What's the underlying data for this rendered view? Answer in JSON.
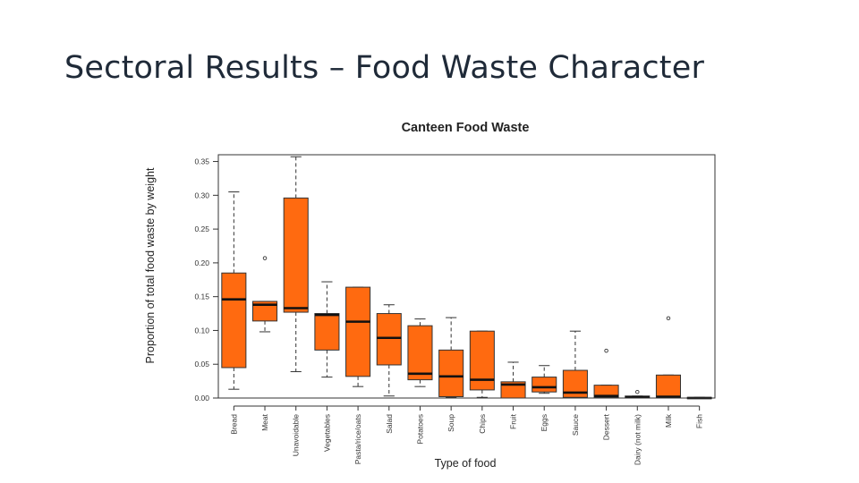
{
  "slide": {
    "title": "Sectoral Results – Food Waste Character"
  },
  "chart_data": {
    "type": "box",
    "title": "Canteen Food Waste",
    "xlabel": "Type of food",
    "ylabel": "Proportion of total food waste by weight",
    "ylim": [
      0,
      0.36
    ],
    "yticks": [
      "0.00",
      "0.05",
      "0.10",
      "0.15",
      "0.20",
      "0.25",
      "0.30",
      "0.35"
    ],
    "box_color": "#ff6a10",
    "categories": [
      "Bread",
      "Meat",
      "Unavoidable",
      "Vegetables",
      "Pasta/rice/oats",
      "Salad",
      "Potatoes",
      "Soup",
      "Chips",
      "Fruit",
      "Eggs",
      "Sauce",
      "Dessert",
      "Dairy (not milk)",
      "Milk",
      "Fish"
    ],
    "boxes": [
      {
        "category": "Bread",
        "min": 0.013,
        "q1": 0.045,
        "median": 0.146,
        "q3": 0.185,
        "max": 0.305,
        "outliers": []
      },
      {
        "category": "Meat",
        "min": 0.098,
        "q1": 0.114,
        "median": 0.138,
        "q3": 0.143,
        "max": 0.143,
        "outliers": [
          0.207
        ]
      },
      {
        "category": "Unavoidable",
        "min": 0.039,
        "q1": 0.127,
        "median": 0.133,
        "q3": 0.296,
        "max": 0.357,
        "outliers": []
      },
      {
        "category": "Vegetables",
        "min": 0.031,
        "q1": 0.071,
        "median": 0.123,
        "q3": 0.125,
        "max": 0.172,
        "outliers": []
      },
      {
        "category": "Pasta/rice/oats",
        "min": 0.017,
        "q1": 0.032,
        "median": 0.113,
        "q3": 0.164,
        "max": 0.164,
        "outliers": []
      },
      {
        "category": "Salad",
        "min": 0.003,
        "q1": 0.049,
        "median": 0.089,
        "q3": 0.125,
        "max": 0.138,
        "outliers": []
      },
      {
        "category": "Potatoes",
        "min": 0.017,
        "q1": 0.027,
        "median": 0.036,
        "q3": 0.107,
        "max": 0.117,
        "outliers": []
      },
      {
        "category": "Soup",
        "min": 0.001,
        "q1": 0.002,
        "median": 0.032,
        "q3": 0.071,
        "max": 0.119,
        "outliers": []
      },
      {
        "category": "Chips",
        "min": 0.001,
        "q1": 0.012,
        "median": 0.027,
        "q3": 0.099,
        "max": 0.099,
        "outliers": []
      },
      {
        "category": "Fruit",
        "min": 0.0,
        "q1": 0.0,
        "median": 0.02,
        "q3": 0.024,
        "max": 0.053,
        "outliers": []
      },
      {
        "category": "Eggs",
        "min": 0.007,
        "q1": 0.009,
        "median": 0.016,
        "q3": 0.031,
        "max": 0.048,
        "outliers": []
      },
      {
        "category": "Sauce",
        "min": 0.0,
        "q1": 0.001,
        "median": 0.008,
        "q3": 0.041,
        "max": 0.099,
        "outliers": []
      },
      {
        "category": "Dessert",
        "min": 0.0,
        "q1": 0.001,
        "median": 0.003,
        "q3": 0.019,
        "max": 0.019,
        "outliers": [
          0.07
        ]
      },
      {
        "category": "Dairy (not milk)",
        "min": 0.0,
        "q1": 0.0,
        "median": 0.001,
        "q3": 0.003,
        "max": 0.003,
        "outliers": [
          0.009
        ]
      },
      {
        "category": "Milk",
        "min": 0.0,
        "q1": 0.0,
        "median": 0.002,
        "q3": 0.034,
        "max": 0.034,
        "outliers": [
          0.118
        ]
      },
      {
        "category": "Fish",
        "min": 0.0,
        "q1": 0.0,
        "median": 0.0,
        "q3": 0.001,
        "max": 0.001,
        "outliers": []
      }
    ]
  }
}
